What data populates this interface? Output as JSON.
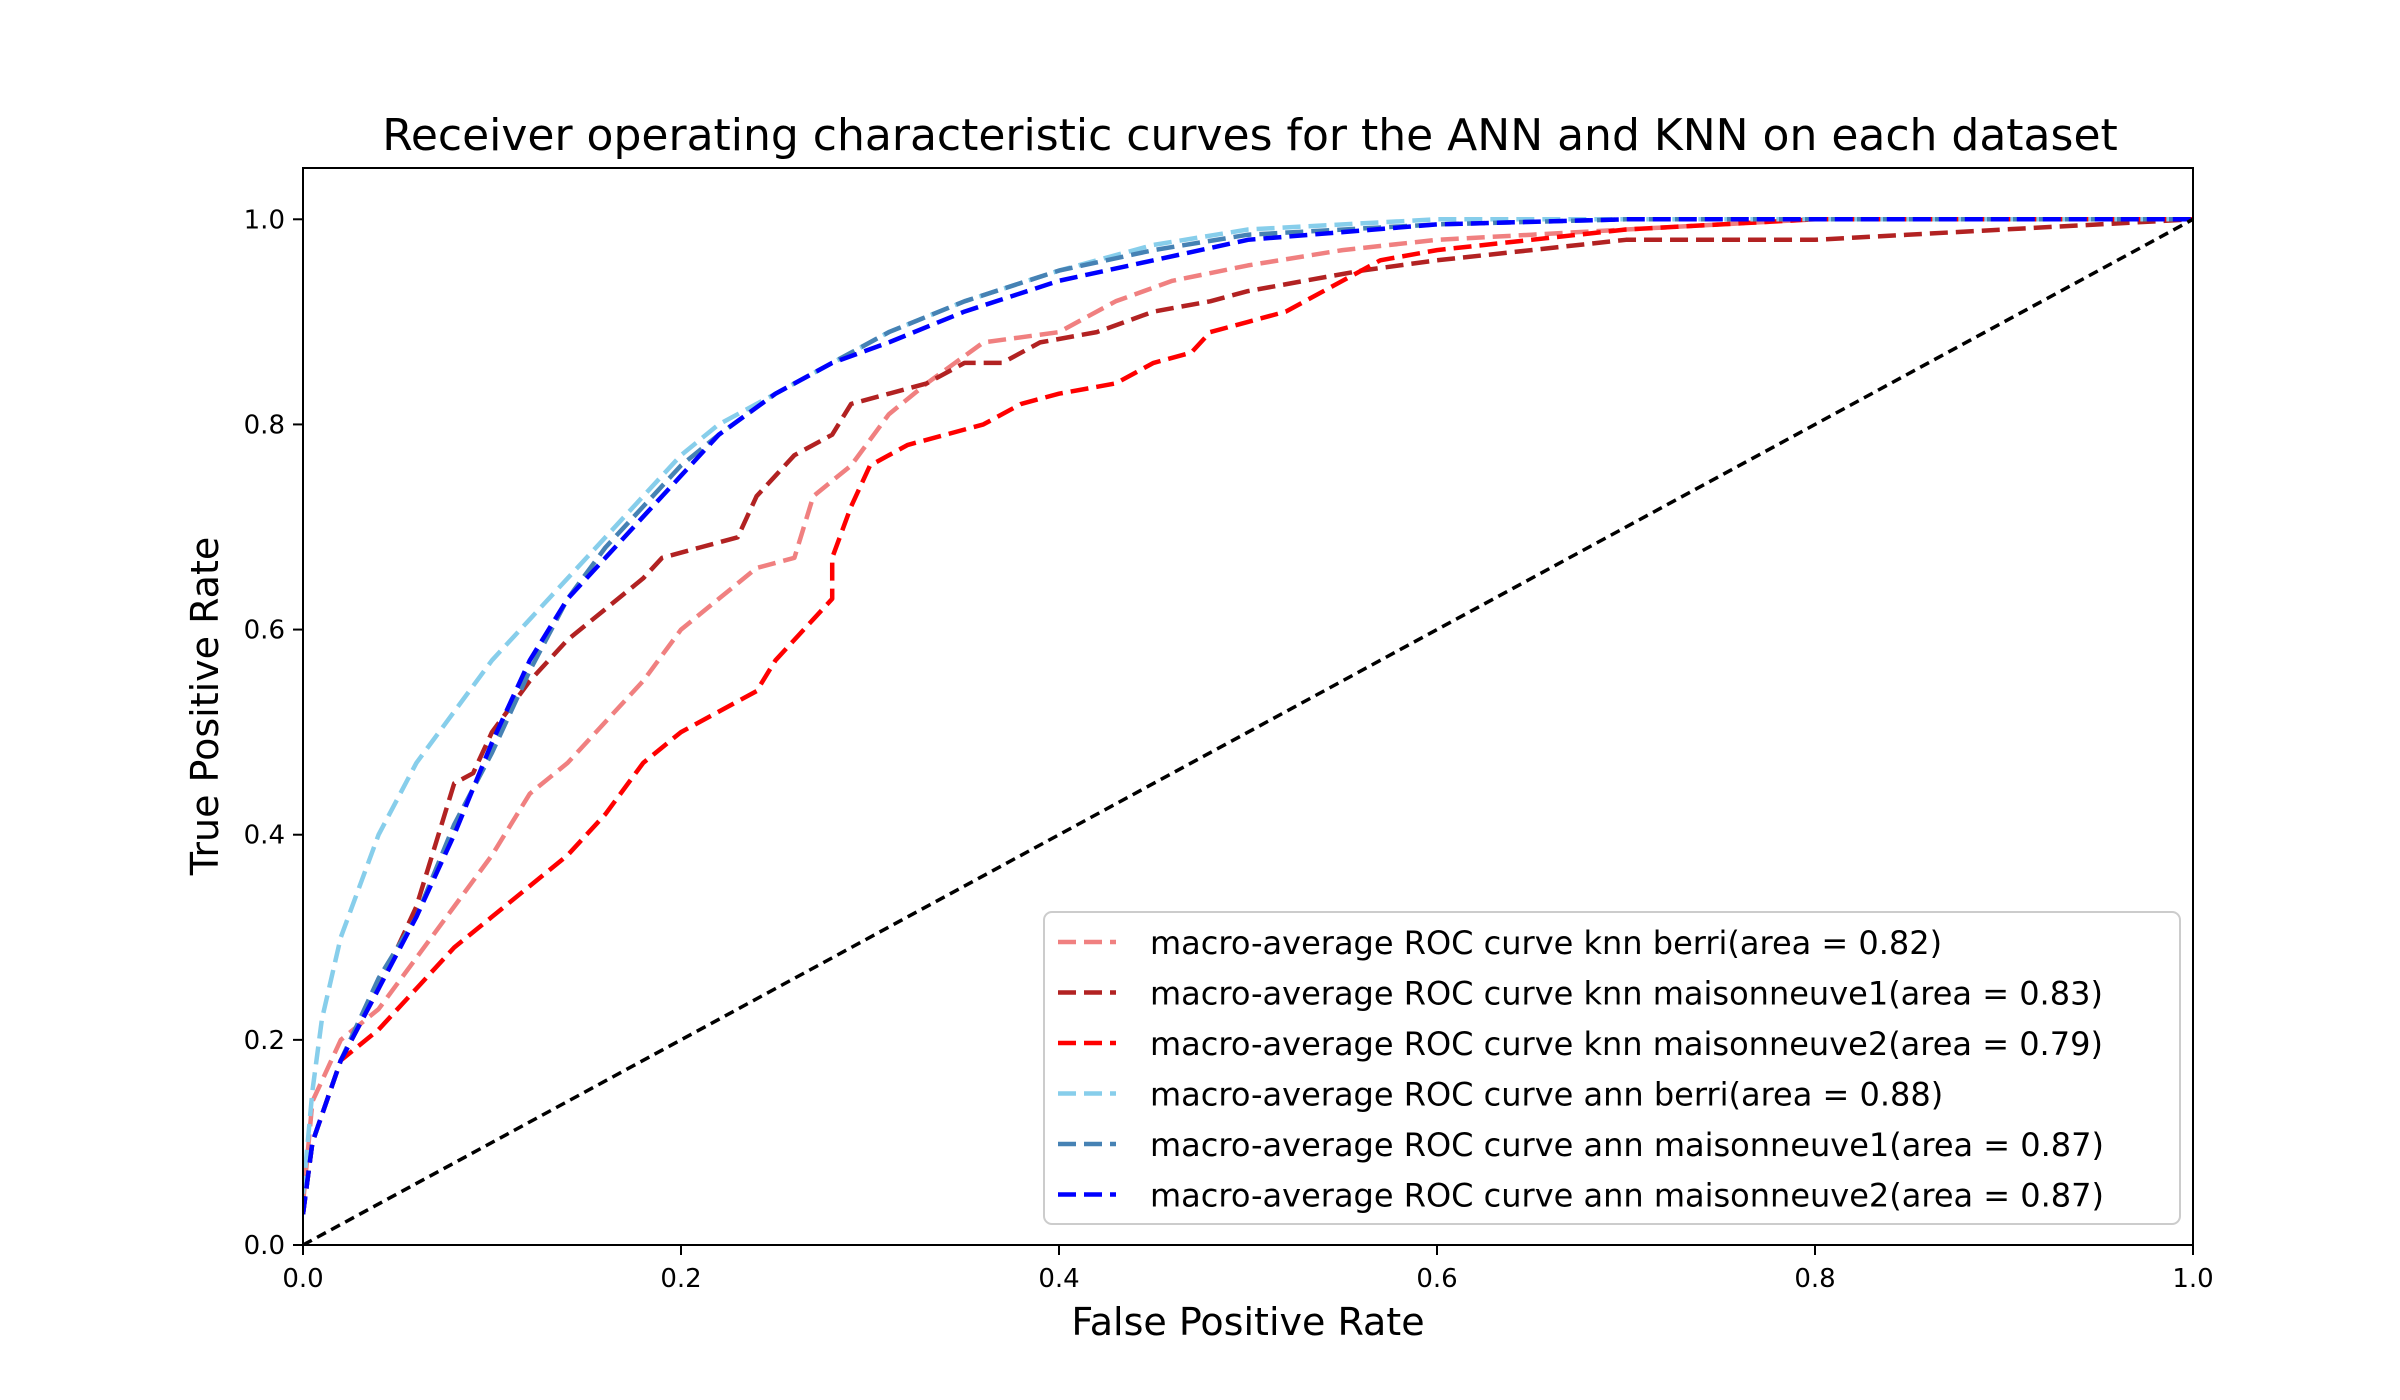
{
  "chart_data": {
    "type": "line",
    "title": "Receiver operating characteristic curves for the ANN and KNN on each dataset",
    "xlabel": "False Positive Rate",
    "ylabel": "True Positive Rate",
    "xlim": [
      0.0,
      1.0
    ],
    "ylim": [
      0.0,
      1.05
    ],
    "xticks": [
      "0.0",
      "0.2",
      "0.4",
      "0.6",
      "0.8",
      "1.0"
    ],
    "yticks": [
      "0.0",
      "0.2",
      "0.4",
      "0.6",
      "0.8",
      "1.0"
    ],
    "grid": false,
    "legend_position": "lower-right",
    "series": [
      {
        "name": "macro-average ROC curve knn berri(area = 0.82)",
        "color": "#F08080",
        "dash": "dashed",
        "points": [
          [
            0,
            0.04
          ],
          [
            0.005,
            0.14
          ],
          [
            0.02,
            0.2
          ],
          [
            0.04,
            0.23
          ],
          [
            0.06,
            0.28
          ],
          [
            0.08,
            0.33
          ],
          [
            0.1,
            0.38
          ],
          [
            0.12,
            0.44
          ],
          [
            0.14,
            0.47
          ],
          [
            0.16,
            0.51
          ],
          [
            0.18,
            0.55
          ],
          [
            0.2,
            0.6
          ],
          [
            0.22,
            0.63
          ],
          [
            0.24,
            0.66
          ],
          [
            0.26,
            0.67
          ],
          [
            0.27,
            0.73
          ],
          [
            0.29,
            0.76
          ],
          [
            0.31,
            0.81
          ],
          [
            0.33,
            0.84
          ],
          [
            0.36,
            0.88
          ],
          [
            0.4,
            0.89
          ],
          [
            0.43,
            0.92
          ],
          [
            0.46,
            0.94
          ],
          [
            0.5,
            0.955
          ],
          [
            0.55,
            0.97
          ],
          [
            0.6,
            0.98
          ],
          [
            0.65,
            0.985
          ],
          [
            0.7,
            0.99
          ],
          [
            0.8,
            1.0
          ],
          [
            1.0,
            1.0
          ]
        ]
      },
      {
        "name": "macro-average ROC curve knn maisonneuve1(area = 0.83)",
        "color": "#B22222",
        "dash": "dashed",
        "points": [
          [
            0,
            0.03
          ],
          [
            0.005,
            0.1
          ],
          [
            0.02,
            0.18
          ],
          [
            0.04,
            0.25
          ],
          [
            0.06,
            0.33
          ],
          [
            0.07,
            0.39
          ],
          [
            0.08,
            0.45
          ],
          [
            0.09,
            0.46
          ],
          [
            0.1,
            0.5
          ],
          [
            0.12,
            0.55
          ],
          [
            0.14,
            0.59
          ],
          [
            0.16,
            0.62
          ],
          [
            0.18,
            0.65
          ],
          [
            0.19,
            0.67
          ],
          [
            0.21,
            0.68
          ],
          [
            0.23,
            0.69
          ],
          [
            0.24,
            0.73
          ],
          [
            0.25,
            0.75
          ],
          [
            0.26,
            0.77
          ],
          [
            0.28,
            0.79
          ],
          [
            0.29,
            0.82
          ],
          [
            0.31,
            0.83
          ],
          [
            0.33,
            0.84
          ],
          [
            0.35,
            0.86
          ],
          [
            0.37,
            0.86
          ],
          [
            0.39,
            0.88
          ],
          [
            0.42,
            0.89
          ],
          [
            0.45,
            0.91
          ],
          [
            0.48,
            0.92
          ],
          [
            0.5,
            0.93
          ],
          [
            0.53,
            0.94
          ],
          [
            0.56,
            0.95
          ],
          [
            0.6,
            0.96
          ],
          [
            0.65,
            0.97
          ],
          [
            0.7,
            0.98
          ],
          [
            0.8,
            0.98
          ],
          [
            0.9,
            0.99
          ],
          [
            1.0,
            1.0
          ]
        ]
      },
      {
        "name": "macro-average ROC curve knn maisonneuve2(area = 0.79)",
        "color": "#FF0000",
        "dash": "dashed",
        "points": [
          [
            0,
            0.03
          ],
          [
            0.005,
            0.1
          ],
          [
            0.02,
            0.18
          ],
          [
            0.04,
            0.21
          ],
          [
            0.06,
            0.25
          ],
          [
            0.08,
            0.29
          ],
          [
            0.1,
            0.32
          ],
          [
            0.12,
            0.35
          ],
          [
            0.14,
            0.38
          ],
          [
            0.16,
            0.42
          ],
          [
            0.18,
            0.47
          ],
          [
            0.2,
            0.5
          ],
          [
            0.22,
            0.52
          ],
          [
            0.24,
            0.54
          ],
          [
            0.25,
            0.57
          ],
          [
            0.27,
            0.61
          ],
          [
            0.28,
            0.63
          ],
          [
            0.28,
            0.67
          ],
          [
            0.29,
            0.72
          ],
          [
            0.3,
            0.76
          ],
          [
            0.32,
            0.78
          ],
          [
            0.34,
            0.79
          ],
          [
            0.36,
            0.8
          ],
          [
            0.38,
            0.82
          ],
          [
            0.4,
            0.83
          ],
          [
            0.43,
            0.84
          ],
          [
            0.45,
            0.86
          ],
          [
            0.47,
            0.87
          ],
          [
            0.48,
            0.89
          ],
          [
            0.5,
            0.9
          ],
          [
            0.52,
            0.91
          ],
          [
            0.55,
            0.94
          ],
          [
            0.57,
            0.96
          ],
          [
            0.6,
            0.97
          ],
          [
            0.65,
            0.98
          ],
          [
            0.7,
            0.99
          ],
          [
            0.8,
            1.0
          ],
          [
            1.0,
            1.0
          ]
        ]
      },
      {
        "name": "macro-average ROC curve ann berri(area = 0.88)",
        "color": "#87CEEB",
        "dash": "dashed",
        "points": [
          [
            0,
            0.05
          ],
          [
            0.005,
            0.15
          ],
          [
            0.01,
            0.22
          ],
          [
            0.02,
            0.3
          ],
          [
            0.03,
            0.35
          ],
          [
            0.04,
            0.4
          ],
          [
            0.06,
            0.47
          ],
          [
            0.08,
            0.52
          ],
          [
            0.1,
            0.57
          ],
          [
            0.12,
            0.61
          ],
          [
            0.14,
            0.65
          ],
          [
            0.16,
            0.69
          ],
          [
            0.18,
            0.73
          ],
          [
            0.2,
            0.77
          ],
          [
            0.22,
            0.8
          ],
          [
            0.25,
            0.83
          ],
          [
            0.28,
            0.86
          ],
          [
            0.31,
            0.89
          ],
          [
            0.35,
            0.92
          ],
          [
            0.4,
            0.95
          ],
          [
            0.45,
            0.975
          ],
          [
            0.5,
            0.99
          ],
          [
            0.6,
            1.0
          ],
          [
            1.0,
            1.0
          ]
        ]
      },
      {
        "name": "macro-average ROC curve ann maisonneuve1(area = 0.87)",
        "color": "#4682B4",
        "dash": "dashed",
        "points": [
          [
            0,
            0.03
          ],
          [
            0.005,
            0.1
          ],
          [
            0.02,
            0.18
          ],
          [
            0.04,
            0.26
          ],
          [
            0.06,
            0.32
          ],
          [
            0.08,
            0.41
          ],
          [
            0.1,
            0.48
          ],
          [
            0.12,
            0.56
          ],
          [
            0.14,
            0.63
          ],
          [
            0.16,
            0.68
          ],
          [
            0.18,
            0.72
          ],
          [
            0.2,
            0.76
          ],
          [
            0.22,
            0.79
          ],
          [
            0.25,
            0.83
          ],
          [
            0.28,
            0.86
          ],
          [
            0.31,
            0.89
          ],
          [
            0.35,
            0.92
          ],
          [
            0.4,
            0.95
          ],
          [
            0.45,
            0.97
          ],
          [
            0.5,
            0.985
          ],
          [
            0.6,
            0.995
          ],
          [
            0.7,
            1.0
          ],
          [
            1.0,
            1.0
          ]
        ]
      },
      {
        "name": "macro-average ROC curve ann maisonneuve2(area = 0.87)",
        "color": "#0000FF",
        "dash": "dashed",
        "points": [
          [
            0,
            0.03
          ],
          [
            0.005,
            0.1
          ],
          [
            0.02,
            0.18
          ],
          [
            0.04,
            0.25
          ],
          [
            0.06,
            0.32
          ],
          [
            0.08,
            0.4
          ],
          [
            0.1,
            0.49
          ],
          [
            0.12,
            0.57
          ],
          [
            0.14,
            0.63
          ],
          [
            0.16,
            0.67
          ],
          [
            0.18,
            0.71
          ],
          [
            0.2,
            0.75
          ],
          [
            0.22,
            0.79
          ],
          [
            0.25,
            0.83
          ],
          [
            0.28,
            0.86
          ],
          [
            0.31,
            0.88
          ],
          [
            0.35,
            0.91
          ],
          [
            0.4,
            0.94
          ],
          [
            0.45,
            0.96
          ],
          [
            0.5,
            0.98
          ],
          [
            0.6,
            0.995
          ],
          [
            0.7,
            1.0
          ],
          [
            1.0,
            1.0
          ]
        ]
      }
    ],
    "reference_line": {
      "color": "#000000",
      "dash": "dashed",
      "points": [
        [
          0,
          0
        ],
        [
          1,
          1
        ]
      ]
    }
  }
}
